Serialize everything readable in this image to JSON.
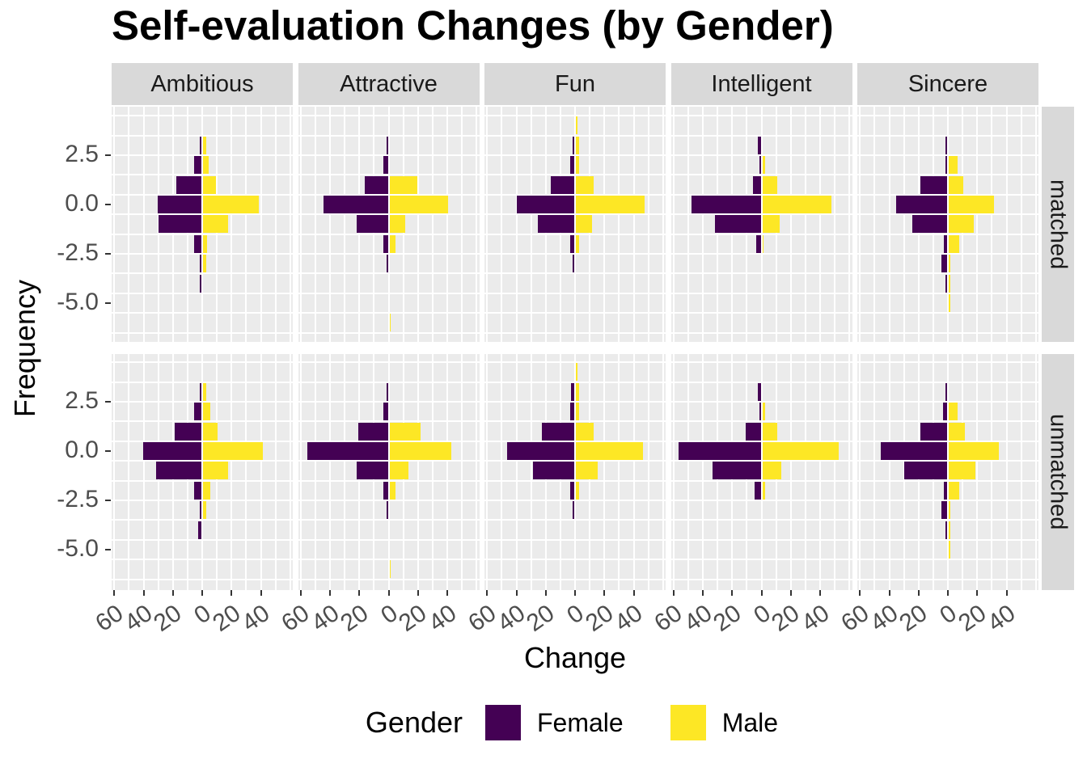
{
  "chart_data": {
    "type": "bar",
    "subtype": "faceted back-to-back histogram (population pyramid)",
    "title": "Self-evaluation Changes (by Gender)",
    "xlabel": "Change",
    "ylabel": "Frequency",
    "col_facets": [
      "Ambitious",
      "Attractive",
      "Fun",
      "Intelligent",
      "Sincere"
    ],
    "row_facets": [
      "matched",
      "unmatched"
    ],
    "x_axis": {
      "tick_counts": [
        -60,
        -40,
        -20,
        0,
        20,
        40
      ],
      "tick_labels": [
        "60",
        "40",
        "20",
        "0",
        "20",
        "40"
      ],
      "minor_step": 10,
      "range": [
        -62,
        62
      ]
    },
    "y_axis": {
      "tick_values": [
        2.5,
        0.0,
        -2.5,
        -5.0
      ],
      "tick_labels": [
        "2.5",
        "0.0",
        "-2.5",
        "-5.0"
      ],
      "range": [
        4.95,
        -7.05
      ]
    },
    "legend": {
      "title": "Gender",
      "entries": [
        {
          "label": "Female",
          "color": "#440154"
        },
        {
          "label": "Male",
          "color": "#FDE725"
        }
      ]
    },
    "colors": {
      "female": "#440154",
      "male": "#FDE725",
      "panel_bg": "#EBEBEB",
      "strip_bg": "#D9D9D9",
      "grid": "#FFFFFF",
      "axis_text": "#4d4d4d",
      "tick_mark": "#333333",
      "strip_text": "#1a1a1a"
    },
    "panels": [
      {
        "row": "matched",
        "col": "Ambitious",
        "bins": [
          {
            "v": 3,
            "f": 1,
            "m": 2
          },
          {
            "v": 2,
            "f": 5,
            "m": 4
          },
          {
            "v": 1,
            "f": 17,
            "m": 9
          },
          {
            "v": 0,
            "f": 30,
            "m": 38
          },
          {
            "v": -1,
            "f": 29,
            "m": 17
          },
          {
            "v": -2,
            "f": 5,
            "m": 3
          },
          {
            "v": -3,
            "f": 1,
            "m": 2
          },
          {
            "v": -4,
            "f": 1,
            "m": 0
          }
        ]
      },
      {
        "row": "matched",
        "col": "Attractive",
        "bins": [
          {
            "v": 3,
            "f": 1,
            "m": 0
          },
          {
            "v": 2,
            "f": 3,
            "m": 0
          },
          {
            "v": 1,
            "f": 16,
            "m": 19
          },
          {
            "v": 0,
            "f": 44,
            "m": 40
          },
          {
            "v": -1,
            "f": 21,
            "m": 11
          },
          {
            "v": -2,
            "f": 3,
            "m": 4
          },
          {
            "v": -3,
            "f": 1,
            "m": 0
          },
          {
            "v": -6,
            "f": 0,
            "m": 1
          }
        ]
      },
      {
        "row": "matched",
        "col": "Fun",
        "bins": [
          {
            "v": 4,
            "f": 0,
            "m": 1
          },
          {
            "v": 3,
            "f": 1,
            "m": 2
          },
          {
            "v": 2,
            "f": 3,
            "m": 2
          },
          {
            "v": 1,
            "f": 16,
            "m": 12
          },
          {
            "v": 0,
            "f": 39,
            "m": 47
          },
          {
            "v": -1,
            "f": 25,
            "m": 11
          },
          {
            "v": -2,
            "f": 3,
            "m": 2
          },
          {
            "v": -3,
            "f": 1,
            "m": 0
          }
        ]
      },
      {
        "row": "matched",
        "col": "Intelligent",
        "bins": [
          {
            "v": 3,
            "f": 2,
            "m": 0
          },
          {
            "v": 2,
            "f": 1,
            "m": 2
          },
          {
            "v": 1,
            "f": 5,
            "m": 10
          },
          {
            "v": 0,
            "f": 47,
            "m": 47
          },
          {
            "v": -1,
            "f": 31,
            "m": 12
          },
          {
            "v": -2,
            "f": 3,
            "m": 1
          }
        ]
      },
      {
        "row": "matched",
        "col": "Sincere",
        "bins": [
          {
            "v": 3,
            "f": 1,
            "m": 0
          },
          {
            "v": 2,
            "f": 1,
            "m": 6
          },
          {
            "v": 1,
            "f": 18,
            "m": 10
          },
          {
            "v": 0,
            "f": 35,
            "m": 31
          },
          {
            "v": -1,
            "f": 24,
            "m": 17
          },
          {
            "v": -2,
            "f": 2,
            "m": 7
          },
          {
            "v": -3,
            "f": 4,
            "m": 1
          },
          {
            "v": -4,
            "f": 1,
            "m": 1
          },
          {
            "v": -5,
            "f": 0,
            "m": 1
          }
        ]
      },
      {
        "row": "unmatched",
        "col": "Ambitious",
        "bins": [
          {
            "v": 3,
            "f": 1,
            "m": 2
          },
          {
            "v": 2,
            "f": 5,
            "m": 5
          },
          {
            "v": 1,
            "f": 18,
            "m": 10
          },
          {
            "v": 0,
            "f": 40,
            "m": 41
          },
          {
            "v": -1,
            "f": 31,
            "m": 17
          },
          {
            "v": -2,
            "f": 5,
            "m": 5
          },
          {
            "v": -3,
            "f": 1,
            "m": 2
          },
          {
            "v": -4,
            "f": 2,
            "m": 0
          }
        ]
      },
      {
        "row": "unmatched",
        "col": "Attractive",
        "bins": [
          {
            "v": 3,
            "f": 1,
            "m": 0
          },
          {
            "v": 2,
            "f": 3,
            "m": 0
          },
          {
            "v": 1,
            "f": 20,
            "m": 21
          },
          {
            "v": 0,
            "f": 55,
            "m": 42
          },
          {
            "v": -1,
            "f": 21,
            "m": 13
          },
          {
            "v": -2,
            "f": 3,
            "m": 4
          },
          {
            "v": -3,
            "f": 1,
            "m": 0
          },
          {
            "v": -6,
            "f": 0,
            "m": 1
          }
        ]
      },
      {
        "row": "unmatched",
        "col": "Fun",
        "bins": [
          {
            "v": 4,
            "f": 0,
            "m": 1
          },
          {
            "v": 3,
            "f": 2,
            "m": 2
          },
          {
            "v": 2,
            "f": 3,
            "m": 2
          },
          {
            "v": 1,
            "f": 22,
            "m": 12
          },
          {
            "v": 0,
            "f": 46,
            "m": 46
          },
          {
            "v": -1,
            "f": 28,
            "m": 15
          },
          {
            "v": -2,
            "f": 3,
            "m": 2
          },
          {
            "v": -3,
            "f": 1,
            "m": 0
          }
        ]
      },
      {
        "row": "unmatched",
        "col": "Intelligent",
        "bins": [
          {
            "v": 3,
            "f": 2,
            "m": 0
          },
          {
            "v": 2,
            "f": 1,
            "m": 2
          },
          {
            "v": 1,
            "f": 10,
            "m": 10
          },
          {
            "v": 0,
            "f": 56,
            "m": 52
          },
          {
            "v": -1,
            "f": 33,
            "m": 13
          },
          {
            "v": -2,
            "f": 4,
            "m": 2
          }
        ]
      },
      {
        "row": "unmatched",
        "col": "Sincere",
        "bins": [
          {
            "v": 3,
            "f": 1,
            "m": 0
          },
          {
            "v": 2,
            "f": 3,
            "m": 6
          },
          {
            "v": 1,
            "f": 18,
            "m": 11
          },
          {
            "v": 0,
            "f": 45,
            "m": 34
          },
          {
            "v": -1,
            "f": 29,
            "m": 18
          },
          {
            "v": -2,
            "f": 2,
            "m": 7
          },
          {
            "v": -3,
            "f": 4,
            "m": 1
          },
          {
            "v": -4,
            "f": 1,
            "m": 1
          },
          {
            "v": -5,
            "f": 0,
            "m": 1
          }
        ]
      }
    ]
  }
}
